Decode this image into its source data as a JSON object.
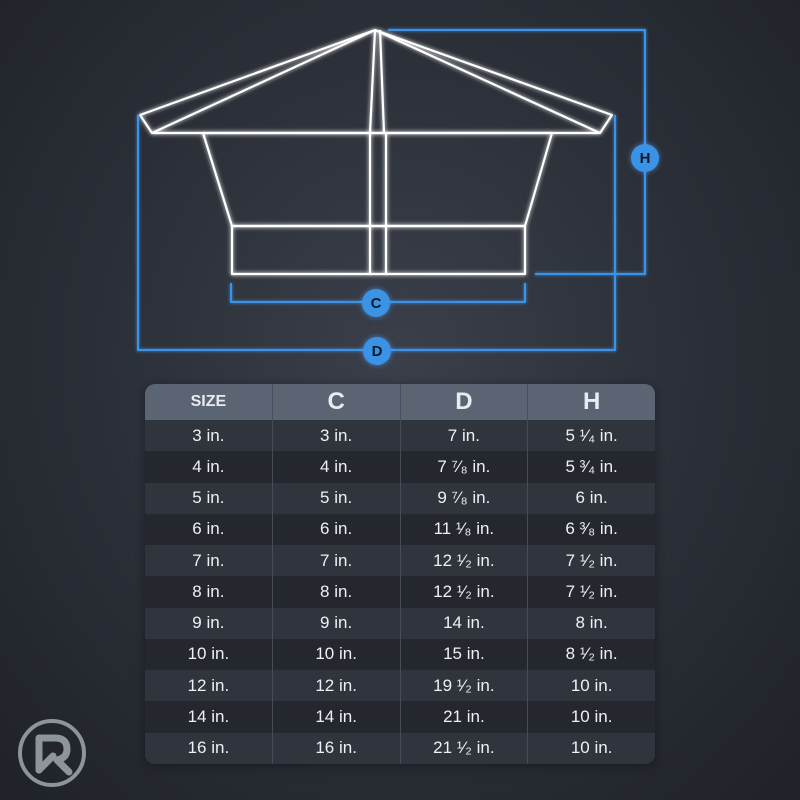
{
  "labels": {
    "c": "C",
    "d": "D",
    "h": "H"
  },
  "table": {
    "headers": [
      "SIZE",
      "C",
      "D",
      "H"
    ],
    "rows": [
      [
        "3 in.",
        "3 in.",
        "7 in.",
        "5 ¹⁄₄ in."
      ],
      [
        "4 in.",
        "4 in.",
        "7 ⁷⁄₈ in.",
        "5 ³⁄₄ in."
      ],
      [
        "5 in.",
        "5 in.",
        "9 ⁷⁄₈ in.",
        "6 in."
      ],
      [
        "6 in.",
        "6 in.",
        "11 ¹⁄₈ in.",
        "6 ³⁄₈ in."
      ],
      [
        "7 in.",
        "7 in.",
        "12 ¹⁄₂ in.",
        "7 ¹⁄₂ in."
      ],
      [
        "8 in.",
        "8 in.",
        "12 ¹⁄₂ in.",
        "7 ¹⁄₂ in."
      ],
      [
        "9 in.",
        "9 in.",
        "14 in.",
        "8 in."
      ],
      [
        "10 in.",
        "10 in.",
        "15 in.",
        "8 ¹⁄₂ in."
      ],
      [
        "12 in.",
        "12 in.",
        "19 ¹⁄₂ in.",
        "10 in."
      ],
      [
        "14 in.",
        "14 in.",
        "21 in.",
        "10 in."
      ],
      [
        "16 in.",
        "16 in.",
        "21 ¹⁄₂ in.",
        "10 in."
      ]
    ]
  },
  "colors": {
    "dimension_line": "#3b93e6",
    "outline": "#ffffff",
    "header_bg": "#5a6472"
  },
  "icons": {
    "logo": "r-logo-icon"
  }
}
